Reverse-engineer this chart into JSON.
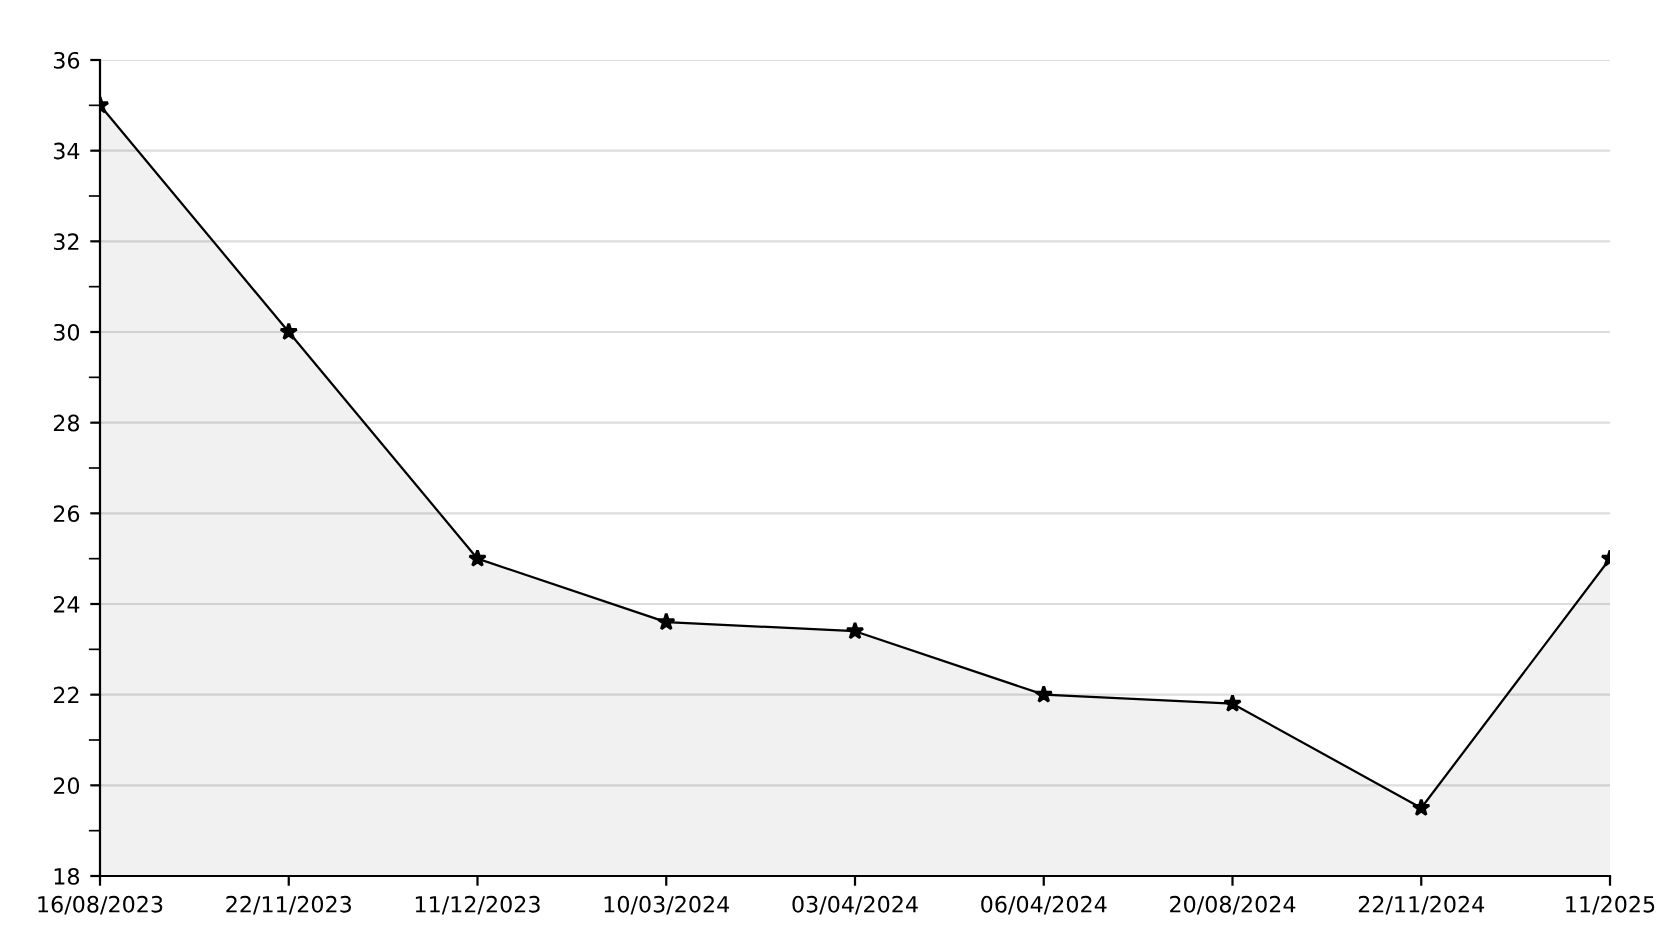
{
  "chart_data": {
    "type": "area",
    "categories": [
      "16/08/2023",
      "22/11/2023",
      "11/12/2023",
      "10/03/2024",
      "03/04/2024",
      "06/04/2024",
      "20/08/2024",
      "22/11/2024",
      "11/2025"
    ],
    "series": [
      {
        "color": "#000000",
        "values": [
          35,
          30,
          25,
          23.6,
          23.4,
          22,
          21.8,
          19.5,
          25
        ]
      }
    ],
    "ylim": [
      18,
      36
    ],
    "yticks": [
      18,
      {
        "value": 19,
        "label": null
      },
      20,
      {
        "value": 21,
        "label": null
      },
      22,
      {
        "value": 23,
        "label": null
      },
      24,
      {
        "value": 25,
        "label": null
      },
      26,
      {
        "value": 27,
        "label": null
      },
      28,
      {
        "value": 29,
        "label": null
      },
      30,
      {
        "value": 31,
        "label": null
      },
      32,
      {
        "value": 33,
        "label": null
      },
      34,
      {
        "value": 35,
        "label": null
      },
      36
    ],
    "grid": "y",
    "marker": "star",
    "line_style": "solid"
  }
}
